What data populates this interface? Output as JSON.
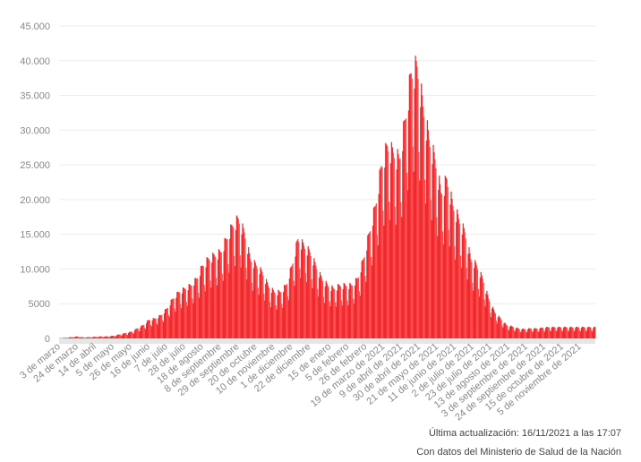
{
  "chart_data": {
    "type": "bar",
    "title": "",
    "xlabel": "",
    "ylabel": "",
    "ylim": [
      0,
      45000
    ],
    "yticks": [
      0,
      5000,
      10000,
      15000,
      20000,
      25000,
      30000,
      35000,
      40000,
      45000
    ],
    "ytick_labels": [
      "0",
      "5000",
      "10.000",
      "15.000",
      "20.000",
      "25.000",
      "30.000",
      "35.000",
      "40.000",
      "45.000"
    ],
    "x_total_days": 630,
    "xticks": [
      {
        "day": 0,
        "label": "3 de marzo"
      },
      {
        "day": 21,
        "label": "24 de marzo"
      },
      {
        "day": 42,
        "label": "14 de abril"
      },
      {
        "day": 63,
        "label": "5 de mayo"
      },
      {
        "day": 84,
        "label": "26 de mayo"
      },
      {
        "day": 105,
        "label": "16 de junio"
      },
      {
        "day": 126,
        "label": "7 de julio"
      },
      {
        "day": 147,
        "label": "28 de julio"
      },
      {
        "day": 168,
        "label": "18 de agosto"
      },
      {
        "day": 189,
        "label": "8 de septiembre"
      },
      {
        "day": 210,
        "label": "29 de septiembre"
      },
      {
        "day": 231,
        "label": "20 de octubre"
      },
      {
        "day": 252,
        "label": "10 de noviembre"
      },
      {
        "day": 273,
        "label": "1 de diciembre"
      },
      {
        "day": 294,
        "label": "22 de diciembre"
      },
      {
        "day": 318,
        "label": "15 de enero"
      },
      {
        "day": 339,
        "label": "5 de febrero"
      },
      {
        "day": 360,
        "label": "26 de febrero"
      },
      {
        "day": 381,
        "label": "19 de marzo de 2021"
      },
      {
        "day": 402,
        "label": "9 de abril de 2021"
      },
      {
        "day": 423,
        "label": "30 de abril de 2021"
      },
      {
        "day": 444,
        "label": "21 de mayo de 2021"
      },
      {
        "day": 465,
        "label": "11 de junio de 2021"
      },
      {
        "day": 486,
        "label": "2 de julio de 2021"
      },
      {
        "day": 507,
        "label": "23 de julio de 2021"
      },
      {
        "day": 528,
        "label": "13 de agosto de 2021"
      },
      {
        "day": 549,
        "label": "3 de septiembre de 2021"
      },
      {
        "day": 570,
        "label": "24 de septiembre de 2021"
      },
      {
        "day": 591,
        "label": "15 de octubre de 2021"
      },
      {
        "day": 612,
        "label": "5 de noviembre de 2021"
      }
    ],
    "series": [
      {
        "name": "weekly_high",
        "values": [
          50,
          100,
          200,
          300,
          150,
          200,
          250,
          300,
          300,
          400,
          600,
          800,
          1000,
          1500,
          2000,
          2800,
          3000,
          3500,
          4500,
          6000,
          7000,
          7500,
          8000,
          9000,
          11000,
          12000,
          12500,
          13000,
          15000,
          17000,
          18000,
          16000,
          12000,
          11000,
          10000,
          8000,
          7000,
          7000,
          8000,
          11000,
          15000,
          14000,
          13000,
          11000,
          9000,
          8000,
          7500,
          8000,
          8000,
          8000,
          9000,
          12000,
          16000,
          20000,
          26000,
          29000,
          28000,
          27000,
          33000,
          40000,
          41000,
          35000,
          30000,
          27000,
          22000,
          24000,
          20000,
          18000,
          16000,
          12000,
          11000,
          9000,
          6000,
          4000,
          3000,
          2000,
          1800,
          1500,
          1400,
          1500,
          1500,
          1600,
          1700
        ]
      },
      {
        "name": "weekly_low",
        "values": [
          20,
          50,
          100,
          150,
          80,
          100,
          130,
          150,
          150,
          200,
          300,
          400,
          500,
          800,
          1100,
          1500,
          1700,
          2000,
          2500,
          3300,
          3900,
          4200,
          4500,
          5000,
          6000,
          6600,
          7000,
          7200,
          8300,
          9400,
          10000,
          8800,
          6600,
          6000,
          5500,
          4400,
          3800,
          3800,
          4400,
          6000,
          8300,
          7700,
          7200,
          6000,
          5000,
          4400,
          4100,
          4400,
          4400,
          4400,
          5000,
          6600,
          8800,
          11000,
          14300,
          16000,
          15400,
          14800,
          18000,
          22000,
          22500,
          19000,
          16500,
          14800,
          12000,
          13200,
          11000,
          9900,
          8800,
          6600,
          6000,
          5000,
          3300,
          2200,
          1650,
          1100,
          1000,
          830,
          770,
          830,
          830,
          880,
          930
        ]
      }
    ]
  },
  "footer": {
    "updated": "Última actualización: 16/11/2021 a las 17:07",
    "source": "Con datos del Ministerio de Salud de la Nación"
  }
}
